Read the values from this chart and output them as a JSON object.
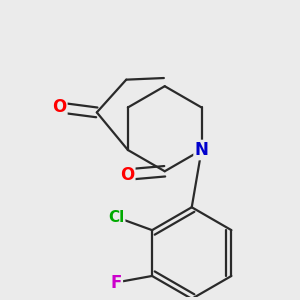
{
  "background_color": "#ebebeb",
  "bond_color": "#2a2a2a",
  "bond_width": 1.6,
  "atom_colors": {
    "O": "#ff0000",
    "N": "#0000cc",
    "Cl": "#00aa00",
    "F": "#cc00cc",
    "C": "#2a2a2a"
  },
  "font_size": 12
}
